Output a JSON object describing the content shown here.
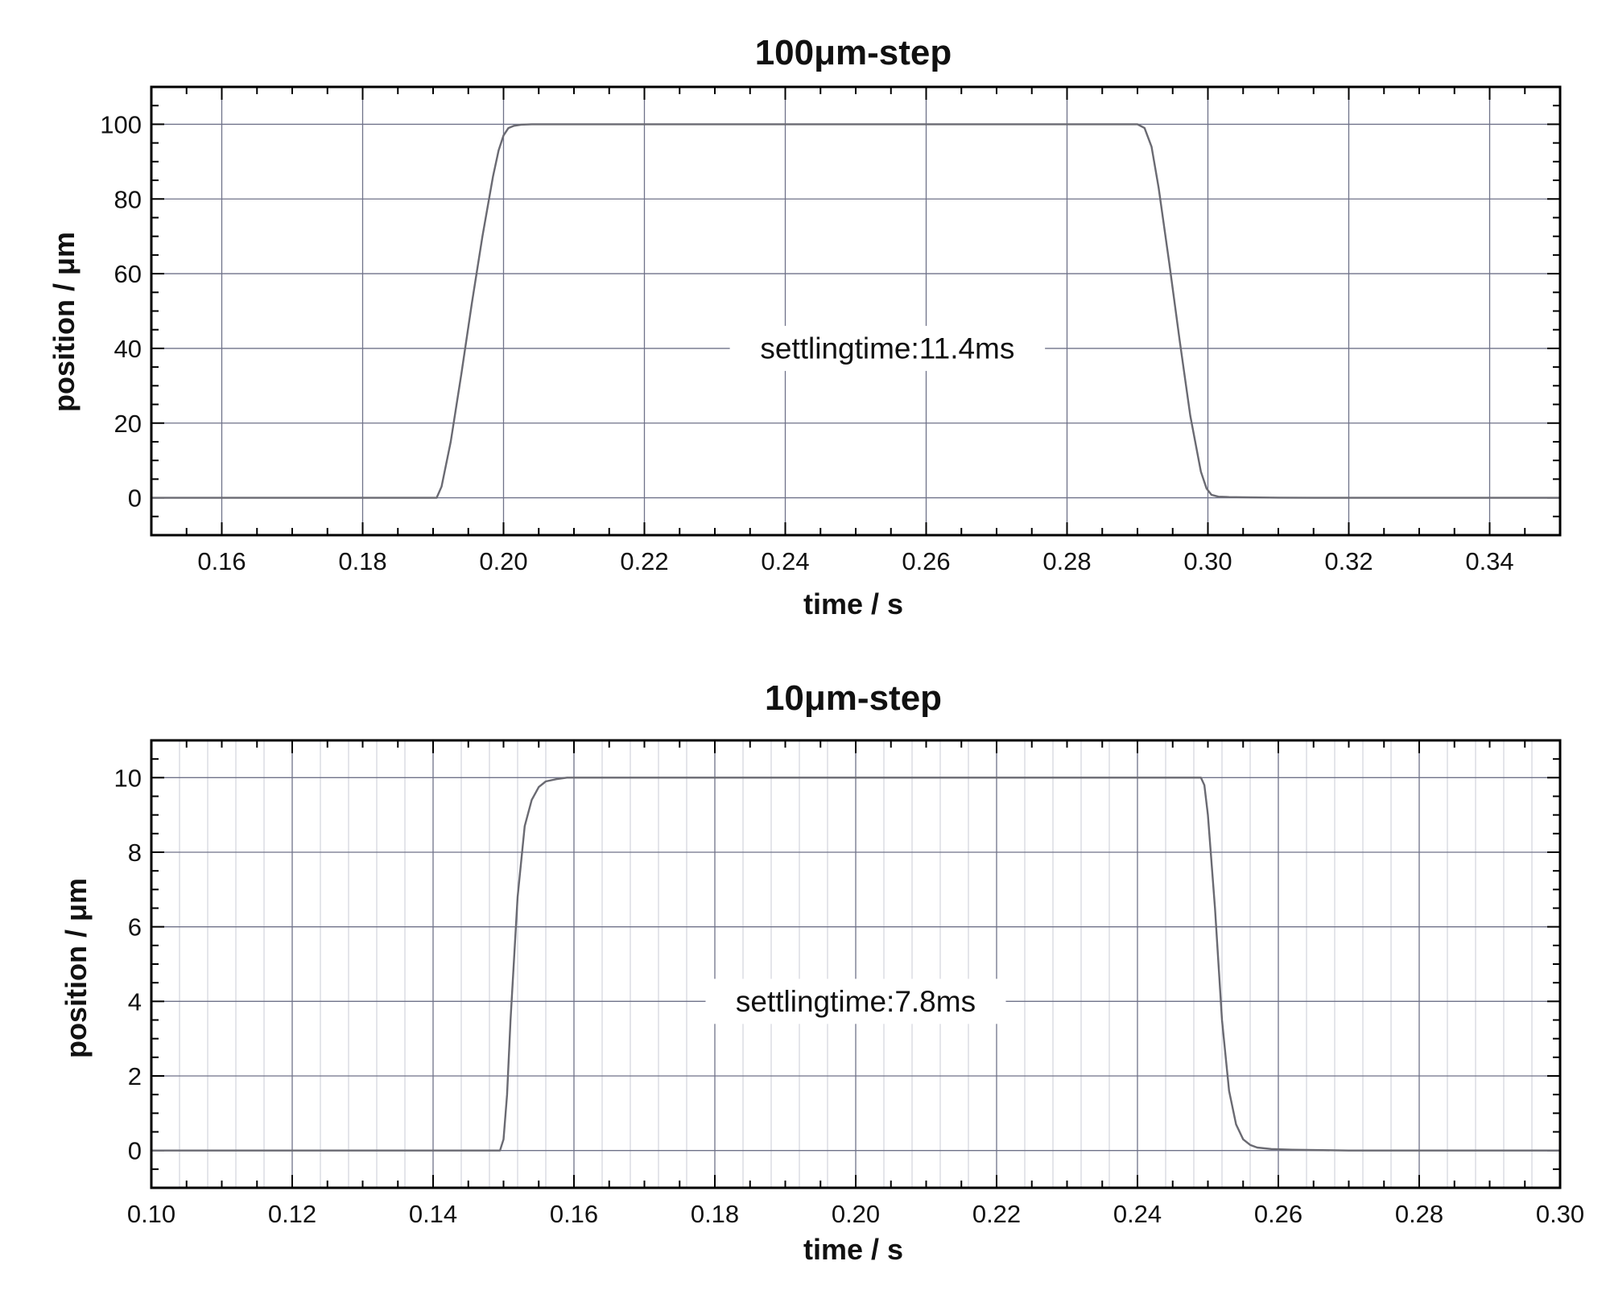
{
  "chart_data": [
    {
      "type": "line",
      "title": "100μm-step",
      "xlabel": "time  / s",
      "ylabel": "position / μm",
      "xlim": [
        0.15,
        0.35
      ],
      "ylim": [
        -10,
        110
      ],
      "xticks": [
        0.16,
        0.18,
        0.2,
        0.22,
        0.24,
        0.26,
        0.28,
        0.3,
        0.32,
        0.34
      ],
      "xtick_labels": [
        "0.16",
        "0.18",
        "0.20",
        "0.22",
        "0.24",
        "0.26",
        "0.28",
        "0.30",
        "0.32",
        "0.34"
      ],
      "yticks": [
        0,
        20,
        40,
        60,
        80,
        100
      ],
      "ytick_labels": [
        "0",
        "20",
        "40",
        "60",
        "80",
        "100"
      ],
      "grid": true,
      "annotation": {
        "text": "settlingtime:11.4ms",
        "x": 0.2545,
        "y": 40
      },
      "series": [
        {
          "x": [
            0.15,
            0.1905,
            0.1912,
            0.1925,
            0.194,
            0.1955,
            0.197,
            0.1985,
            0.1993,
            0.2,
            0.2007,
            0.2015,
            0.2025,
            0.204,
            0.206,
            0.29,
            0.291,
            0.292,
            0.293,
            0.2945,
            0.296,
            0.2975,
            0.299,
            0.2998,
            0.3005,
            0.3015,
            0.303,
            0.306,
            0.31,
            0.315,
            0.35
          ],
          "y": [
            0,
            0,
            3,
            15,
            33,
            52,
            70,
            86,
            93,
            97,
            99,
            99.6,
            99.9,
            100,
            100,
            100,
            99,
            94,
            83,
            63,
            42,
            22,
            7,
            2.5,
            0.8,
            0.3,
            0.2,
            0.1,
            0.05,
            0,
            0
          ]
        }
      ]
    },
    {
      "type": "line",
      "title": "10μm-step",
      "xlabel": "time  / s",
      "ylabel": "position / μm",
      "xlim": [
        0.1,
        0.3
      ],
      "ylim": [
        -1,
        11
      ],
      "xticks": [
        0.1,
        0.12,
        0.14,
        0.16,
        0.18,
        0.2,
        0.22,
        0.24,
        0.26,
        0.28,
        0.3
      ],
      "xtick_labels": [
        "0.10",
        "0.12",
        "0.14",
        "0.16",
        "0.18",
        "0.20",
        "0.22",
        "0.24",
        "0.26",
        "0.28",
        "0.30"
      ],
      "yticks": [
        0,
        2,
        4,
        6,
        8,
        10
      ],
      "ytick_labels": [
        "0",
        "2",
        "4",
        "6",
        "8",
        "10"
      ],
      "grid": true,
      "annotation": {
        "text": "settlingtime:7.8ms",
        "x": 0.2,
        "y": 4
      },
      "series": [
        {
          "x": [
            0.1,
            0.1495,
            0.15,
            0.1505,
            0.151,
            0.152,
            0.153,
            0.154,
            0.155,
            0.156,
            0.1575,
            0.159,
            0.162,
            0.17,
            0.249,
            0.2495,
            0.25,
            0.251,
            0.252,
            0.253,
            0.254,
            0.255,
            0.256,
            0.257,
            0.259,
            0.262,
            0.27,
            0.28,
            0.3
          ],
          "y": [
            0,
            0,
            0.3,
            1.5,
            3.5,
            6.8,
            8.7,
            9.4,
            9.75,
            9.9,
            9.96,
            10,
            10,
            10,
            10,
            9.8,
            9.0,
            6.5,
            3.5,
            1.6,
            0.7,
            0.3,
            0.15,
            0.08,
            0.04,
            0.02,
            0,
            0,
            0
          ]
        }
      ]
    }
  ]
}
